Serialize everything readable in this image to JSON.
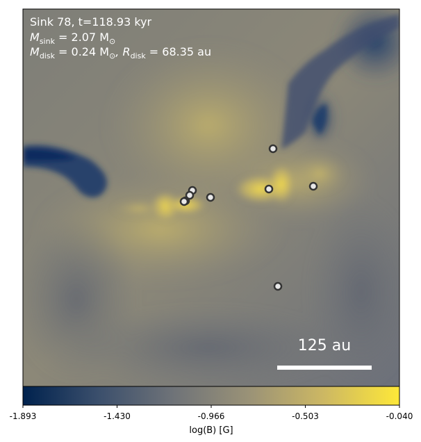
{
  "figure": {
    "info_line1": "Sink 78, t=118.93 kyr",
    "info_mass_label": "M",
    "info_mass_sub": "sink",
    "info_mass_value": " = 2.07 M",
    "info_mass_unit_sub": "⊙",
    "info_disk_label": "M",
    "info_disk_sub": "disk",
    "info_disk_value": " = 0.24 M",
    "info_disk_unit_sub": "⊙",
    "info_r_label": ", R",
    "info_r_sub": "disk",
    "info_r_value": " = 68.35 au",
    "scalebar_label": "125 au"
  },
  "colorbar": {
    "label": "log(B) [G]",
    "ticks": [
      "-1.893",
      "-1.430",
      "-0.966",
      "-0.503",
      "-0.040"
    ],
    "colors": [
      "#00224e",
      "#575c6d",
      "#7c7b78",
      "#a59c74",
      "#d3c164",
      "#fee838"
    ]
  },
  "sinks": {
    "count": 9,
    "fill": "#e8e8e8",
    "stroke": "#333333"
  }
}
